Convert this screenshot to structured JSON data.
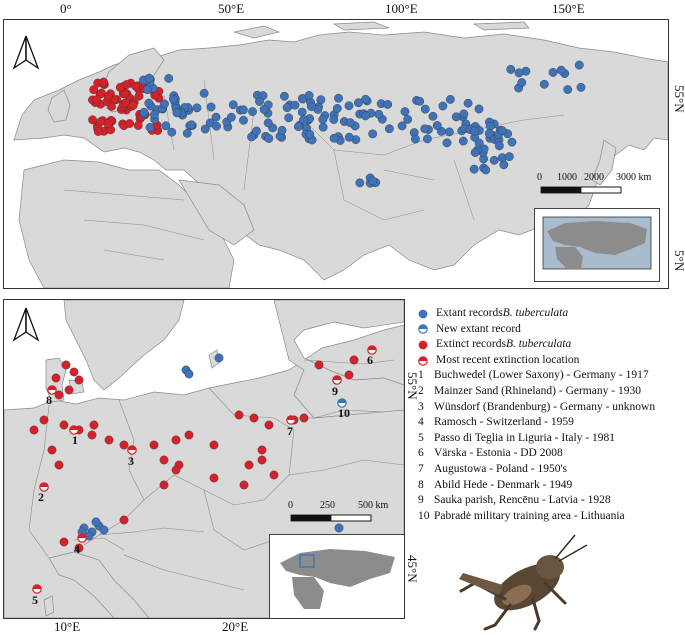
{
  "top_map": {
    "lon_ticks": [
      "0°",
      "50°E",
      "100°E",
      "150°E"
    ],
    "lat_ticks": [
      "55°N",
      "5°N"
    ],
    "scale": {
      "labels": [
        "0",
        "1000",
        "2000",
        "3000 km"
      ]
    }
  },
  "bottom_map": {
    "lon_ticks": [
      "10°E",
      "20°E"
    ],
    "lat_ticks": [
      "55°N",
      "45°N"
    ],
    "scale": {
      "labels": [
        "0",
        "250",
        "500 km"
      ]
    },
    "site_numbers": [
      "1",
      "2",
      "3",
      "4",
      "5",
      "6",
      "7",
      "8",
      "9",
      "10"
    ]
  },
  "legend": {
    "items": [
      {
        "label": "Extant records ",
        "italic": "B. tuberculata",
        "symbol": "blue-dot"
      },
      {
        "label": "New extant record",
        "italic": "",
        "symbol": "half-blue"
      },
      {
        "label": "Extinct records ",
        "italic": "B. tuberculata",
        "symbol": "red-dot"
      },
      {
        "label": "Most recent extinction location",
        "italic": "",
        "symbol": "half-red"
      }
    ],
    "sites": [
      {
        "num": "1",
        "text": "Buchwedel (Lower Saxony) - Germany - 1917"
      },
      {
        "num": "2",
        "text": "Mainzer Sand (Rhineland) - Germany - 1930"
      },
      {
        "num": "3",
        "text": "Wünsdorf (Brandenburg) - Germany - unknown"
      },
      {
        "num": "4",
        "text": "Ramosch - Switzerland - 1959"
      },
      {
        "num": "5",
        "text": "Passo di Teglia in Liguria - Italy - 1981"
      },
      {
        "num": "6",
        "text": "Värska - Estonia - DD 2008"
      },
      {
        "num": "7",
        "text": "Augustowa - Poland - 1950's"
      },
      {
        "num": "8",
        "text": "Abild Hede  - Denmark - 1949"
      },
      {
        "num": "9",
        "text": "Sauka parish, Rencēnu - Latvia - 1928"
      },
      {
        "num": "10",
        "text": "Pabradė military training area - Lithuania"
      }
    ]
  },
  "colors": {
    "extant": "#3e73b9",
    "extinct": "#d7212a",
    "land": "#d9d9d9",
    "sea": "#ffffff",
    "inset_sea": "#a9bccd",
    "inset_land": "#8c8c8c"
  },
  "north_arrow_label": "north-arrow"
}
